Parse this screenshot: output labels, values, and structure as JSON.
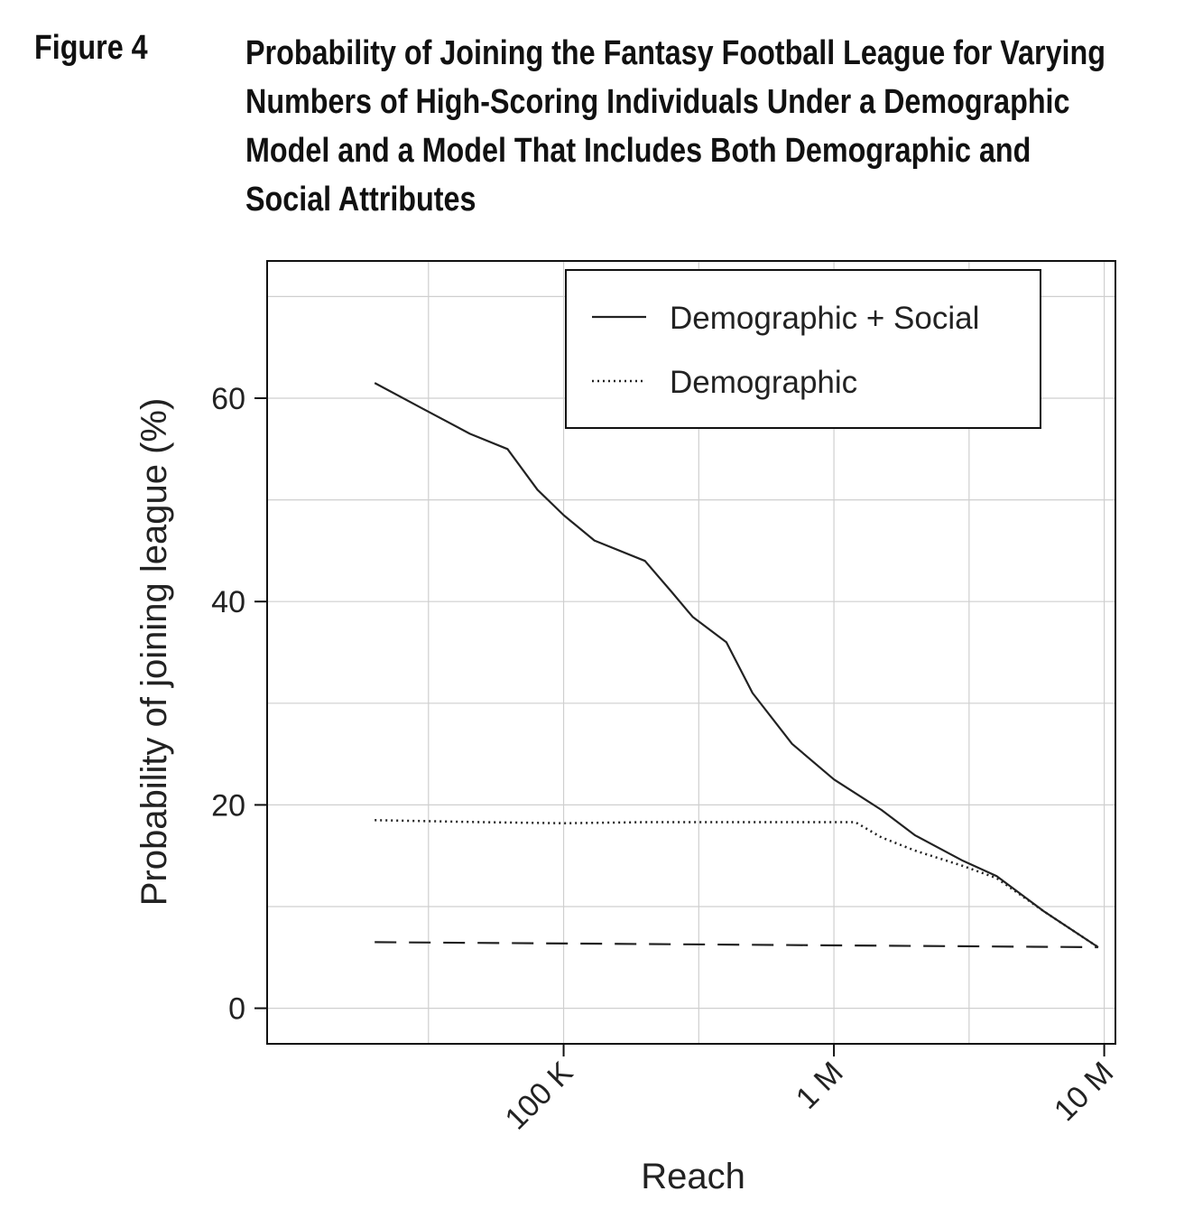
{
  "figure": {
    "label": "Figure 4",
    "title": "Probability of Joining the Fantasy Football League for Varying Numbers of High-Scoring Individuals Under a Demographic Model and a Model That Includes Both Demographic and Social Attributes"
  },
  "chart_data": {
    "type": "line",
    "xlabel": "Reach",
    "ylabel": "Probability of joining league (%)",
    "xscale": "log",
    "xlim": [
      8000,
      11000000
    ],
    "ylim": [
      -3.5,
      73.5
    ],
    "xticks": [
      {
        "value": 100000,
        "label": "100 K"
      },
      {
        "value": 1000000,
        "label": "1 M"
      },
      {
        "value": 10000000,
        "label": "10 M"
      }
    ],
    "yticks": [
      {
        "value": 0,
        "label": "0"
      },
      {
        "value": 20,
        "label": "20"
      },
      {
        "value": 40,
        "label": "40"
      },
      {
        "value": 60,
        "label": "60"
      }
    ],
    "grid": true,
    "legend_position": "top-right",
    "series": [
      {
        "name": "Demographic + Social",
        "style": "solid",
        "x": [
          20000,
          30000,
          45000,
          62000,
          80000,
          100000,
          130000,
          200000,
          250000,
          300000,
          400000,
          500000,
          700000,
          1000000,
          1500000,
          2000000,
          3000000,
          4000000,
          6000000,
          9500000
        ],
        "y": [
          61.5,
          59,
          56.5,
          55,
          51,
          48.5,
          46,
          44,
          41,
          38.5,
          36,
          31,
          26,
          22.5,
          19.5,
          17,
          14.5,
          13,
          9.5,
          6
        ]
      },
      {
        "name": "Demographic",
        "style": "dotted",
        "x": [
          20000,
          50000,
          100000,
          200000,
          500000,
          1000000,
          1200000,
          1500000,
          2000000,
          3000000,
          4000000,
          6000000,
          9500000
        ],
        "y": [
          18.5,
          18.3,
          18.2,
          18.3,
          18.3,
          18.3,
          18.3,
          16.8,
          15.5,
          14,
          12.8,
          9.5,
          6
        ]
      },
      {
        "name": "",
        "style": "dashed",
        "x": [
          20000,
          9500000
        ],
        "y": [
          6.5,
          6
        ]
      }
    ]
  }
}
